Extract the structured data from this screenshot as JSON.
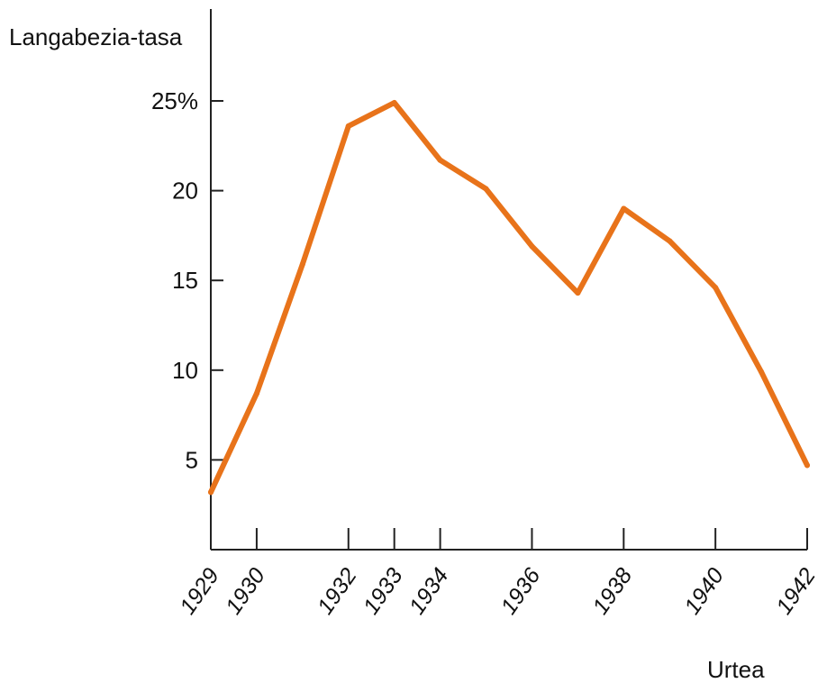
{
  "chart_data": {
    "type": "line",
    "title": "",
    "ylabel": "Langabezia-tasa",
    "xlabel": "Urtea",
    "ylim": [
      0,
      25
    ],
    "xlim": [
      1929,
      1942
    ],
    "yticks": [
      5,
      10,
      15,
      20,
      25
    ],
    "ytick_labels": [
      "5",
      "10",
      "15",
      "20",
      "25%"
    ],
    "xticks": [
      1929,
      1930,
      1932,
      1933,
      1934,
      1936,
      1938,
      1940,
      1942
    ],
    "xtick_labels": [
      "1929",
      "1930",
      "1932",
      "1933",
      "1934",
      "1936",
      "1938",
      "1940",
      "1942"
    ],
    "grid": false,
    "series": [
      {
        "color": "#E8731A",
        "x": [
          1929,
          1930,
          1931,
          1932,
          1933,
          1934,
          1935,
          1936,
          1937,
          1938,
          1939,
          1940,
          1941,
          1942
        ],
        "y": [
          3.2,
          8.7,
          15.9,
          23.6,
          24.9,
          21.7,
          20.1,
          16.9,
          14.3,
          19.0,
          17.2,
          14.6,
          9.9,
          4.7
        ]
      }
    ]
  }
}
